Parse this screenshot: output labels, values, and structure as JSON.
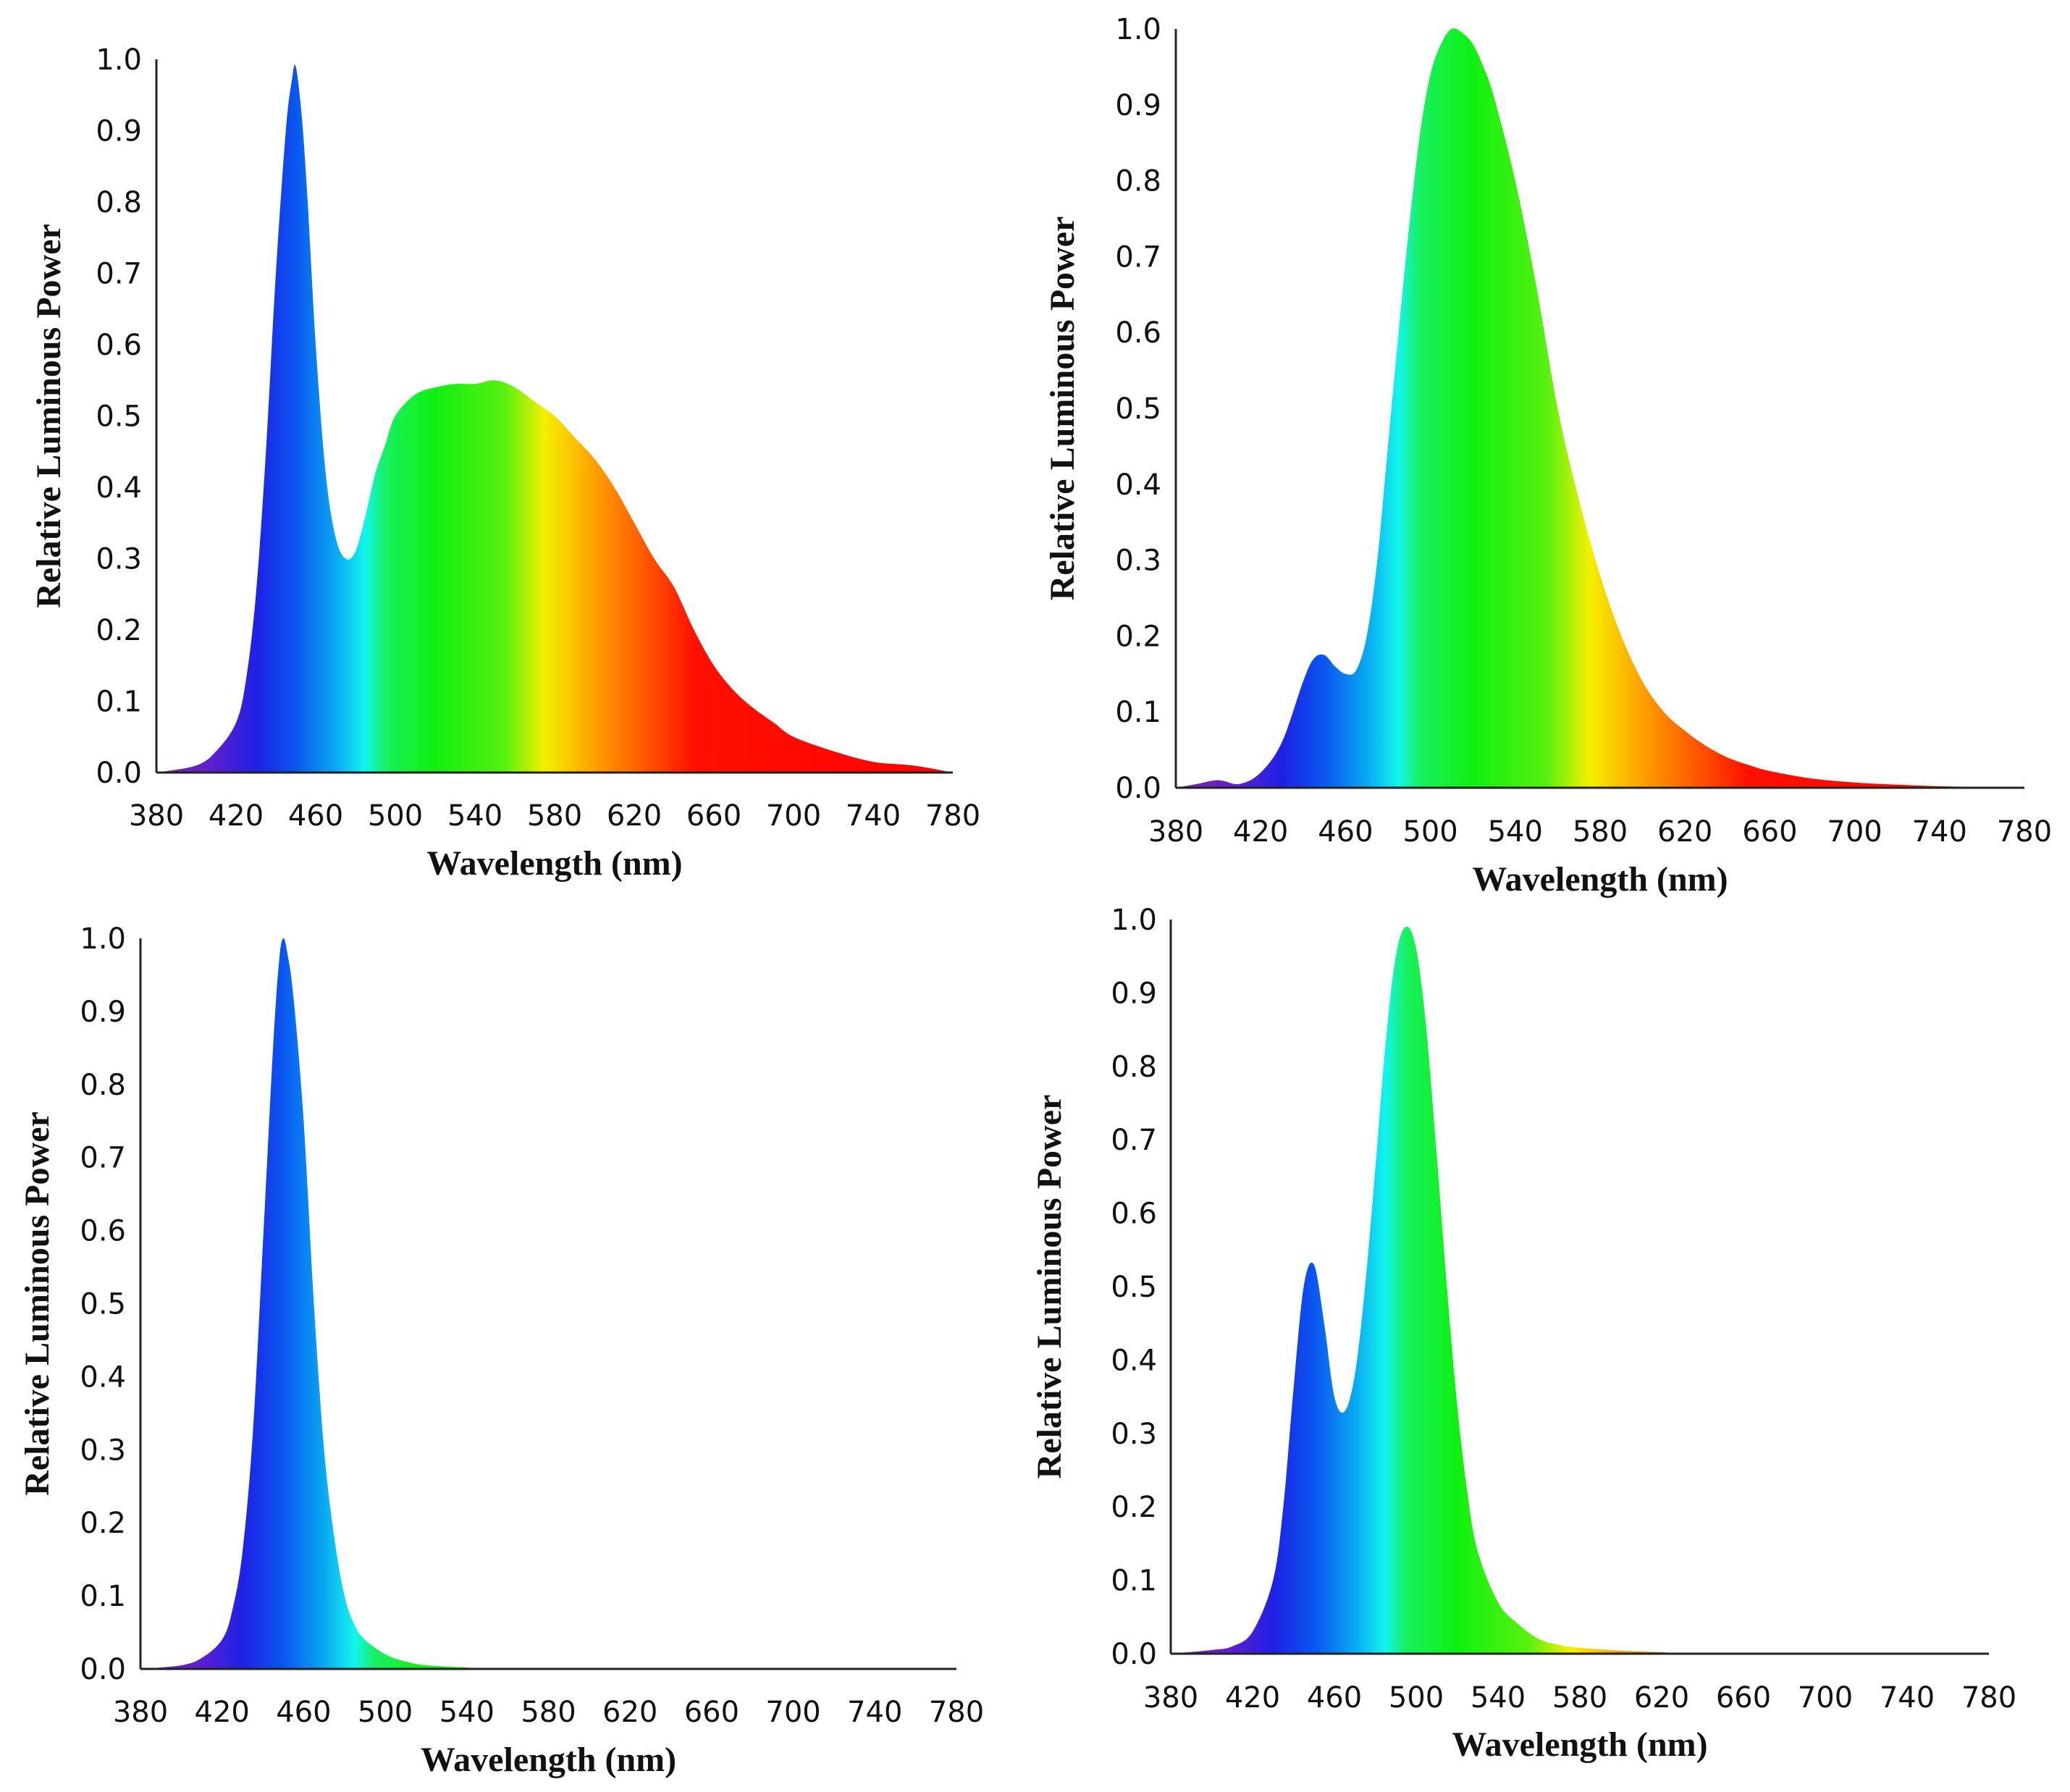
{
  "spectrum_colors": [
    {
      "nm": 380,
      "color": "#7a2aa0"
    },
    {
      "nm": 410,
      "color": "#5a1fd0"
    },
    {
      "nm": 430,
      "color": "#1f20e6"
    },
    {
      "nm": 450,
      "color": "#0a56f0"
    },
    {
      "nm": 470,
      "color": "#0aa8f2"
    },
    {
      "nm": 485,
      "color": "#12f5ee"
    },
    {
      "nm": 495,
      "color": "#18f060"
    },
    {
      "nm": 520,
      "color": "#10f010"
    },
    {
      "nm": 555,
      "color": "#58f010"
    },
    {
      "nm": 575,
      "color": "#f4f000"
    },
    {
      "nm": 600,
      "color": "#ffa000"
    },
    {
      "nm": 630,
      "color": "#ff4a00"
    },
    {
      "nm": 650,
      "color": "#ff1000"
    },
    {
      "nm": 780,
      "color": "#ff0000"
    }
  ],
  "chart_data": [
    {
      "type": "area",
      "position": "top-left",
      "xlabel": "Wavelength (nm)",
      "ylabel": "Relative Luminous Power",
      "xlim": [
        380,
        780
      ],
      "ylim": [
        0,
        1
      ],
      "xticks": [
        "380",
        "420",
        "460",
        "500",
        "540",
        "580",
        "620",
        "660",
        "700",
        "740",
        "780"
      ],
      "yticks": [
        "0.0",
        "0.1",
        "0.2",
        "0.3",
        "0.4",
        "0.5",
        "0.6",
        "0.7",
        "0.8",
        "0.9",
        "1.0"
      ],
      "x": [
        380,
        400,
        410,
        420,
        425,
        430,
        435,
        440,
        445,
        448,
        450,
        453,
        456,
        460,
        465,
        470,
        475,
        480,
        485,
        490,
        495,
        500,
        510,
        520,
        530,
        540,
        550,
        560,
        570,
        580,
        590,
        600,
        610,
        620,
        630,
        640,
        650,
        660,
        670,
        680,
        690,
        700,
        720,
        740,
        760,
        780
      ],
      "y": [
        0.0,
        0.01,
        0.03,
        0.07,
        0.13,
        0.25,
        0.45,
        0.7,
        0.9,
        0.97,
        0.99,
        0.92,
        0.8,
        0.6,
        0.42,
        0.33,
        0.3,
        0.31,
        0.36,
        0.42,
        0.46,
        0.5,
        0.53,
        0.54,
        0.545,
        0.545,
        0.55,
        0.54,
        0.52,
        0.5,
        0.47,
        0.44,
        0.4,
        0.35,
        0.3,
        0.26,
        0.2,
        0.15,
        0.115,
        0.09,
        0.07,
        0.05,
        0.03,
        0.015,
        0.01,
        0.0
      ]
    },
    {
      "type": "area",
      "position": "top-right",
      "xlabel": "Wavelength (nm)",
      "ylabel": "Relative Luminous Power",
      "xlim": [
        380,
        780
      ],
      "ylim": [
        0,
        1
      ],
      "xticks": [
        "380",
        "420",
        "460",
        "500",
        "540",
        "580",
        "620",
        "660",
        "700",
        "740",
        "780"
      ],
      "yticks": [
        "0.0",
        "0.1",
        "0.2",
        "0.3",
        "0.4",
        "0.5",
        "0.6",
        "0.7",
        "0.8",
        "0.9",
        "1.0"
      ],
      "x": [
        380,
        390,
        400,
        410,
        420,
        430,
        440,
        445,
        450,
        455,
        460,
        465,
        470,
        475,
        480,
        485,
        490,
        495,
        500,
        505,
        510,
        515,
        520,
        525,
        530,
        540,
        550,
        560,
        570,
        580,
        590,
        600,
        610,
        620,
        630,
        640,
        650,
        660,
        680,
        700,
        720,
        740,
        760,
        780
      ],
      "y": [
        0.0,
        0.005,
        0.01,
        0.005,
        0.02,
        0.06,
        0.14,
        0.17,
        0.175,
        0.16,
        0.15,
        0.155,
        0.2,
        0.3,
        0.45,
        0.6,
        0.74,
        0.86,
        0.94,
        0.98,
        1.0,
        0.995,
        0.98,
        0.95,
        0.91,
        0.8,
        0.66,
        0.5,
        0.38,
        0.28,
        0.2,
        0.14,
        0.1,
        0.075,
        0.055,
        0.04,
        0.03,
        0.022,
        0.012,
        0.007,
        0.004,
        0.002,
        0.001,
        0.0
      ]
    },
    {
      "type": "area",
      "position": "bottom-left",
      "xlabel": "Wavelength (nm)",
      "ylabel": "Relative Luminous Power",
      "xlim": [
        380,
        780
      ],
      "ylim": [
        0,
        1
      ],
      "xticks": [
        "380",
        "420",
        "460",
        "500",
        "540",
        "580",
        "620",
        "660",
        "700",
        "740",
        "780"
      ],
      "yticks": [
        "0.0",
        "0.1",
        "0.2",
        "0.3",
        "0.4",
        "0.5",
        "0.6",
        "0.7",
        "0.8",
        "0.9",
        "1.0"
      ],
      "x": [
        380,
        400,
        410,
        420,
        425,
        430,
        435,
        440,
        445,
        448,
        450,
        452,
        455,
        460,
        465,
        470,
        475,
        480,
        485,
        490,
        500,
        510,
        520,
        540,
        560,
        780
      ],
      "y": [
        0.0,
        0.005,
        0.015,
        0.04,
        0.08,
        0.16,
        0.32,
        0.58,
        0.85,
        0.97,
        1.0,
        0.98,
        0.92,
        0.75,
        0.5,
        0.3,
        0.18,
        0.1,
        0.06,
        0.04,
        0.02,
        0.01,
        0.005,
        0.002,
        0.0,
        0.0
      ]
    },
    {
      "type": "area",
      "position": "bottom-right",
      "xlabel": "Wavelength (nm)",
      "ylabel": "Relative Luminous Power",
      "xlim": [
        380,
        780
      ],
      "ylim": [
        0,
        1
      ],
      "xticks": [
        "380",
        "420",
        "460",
        "500",
        "540",
        "580",
        "620",
        "660",
        "700",
        "740",
        "780"
      ],
      "yticks": [
        "0.0",
        "0.1",
        "0.2",
        "0.3",
        "0.4",
        "0.5",
        "0.6",
        "0.7",
        "0.8",
        "0.9",
        "1.0"
      ],
      "x": [
        380,
        400,
        410,
        420,
        430,
        435,
        440,
        445,
        450,
        455,
        460,
        465,
        470,
        475,
        480,
        485,
        490,
        495,
        500,
        505,
        510,
        515,
        520,
        525,
        530,
        540,
        550,
        560,
        570,
        580,
        600,
        620,
        640,
        780
      ],
      "y": [
        0.0,
        0.005,
        0.01,
        0.03,
        0.1,
        0.2,
        0.36,
        0.5,
        0.53,
        0.45,
        0.35,
        0.33,
        0.38,
        0.5,
        0.66,
        0.83,
        0.95,
        0.99,
        0.96,
        0.85,
        0.68,
        0.5,
        0.34,
        0.22,
        0.14,
        0.07,
        0.04,
        0.02,
        0.012,
        0.008,
        0.004,
        0.002,
        0.0,
        0.0
      ]
    }
  ]
}
